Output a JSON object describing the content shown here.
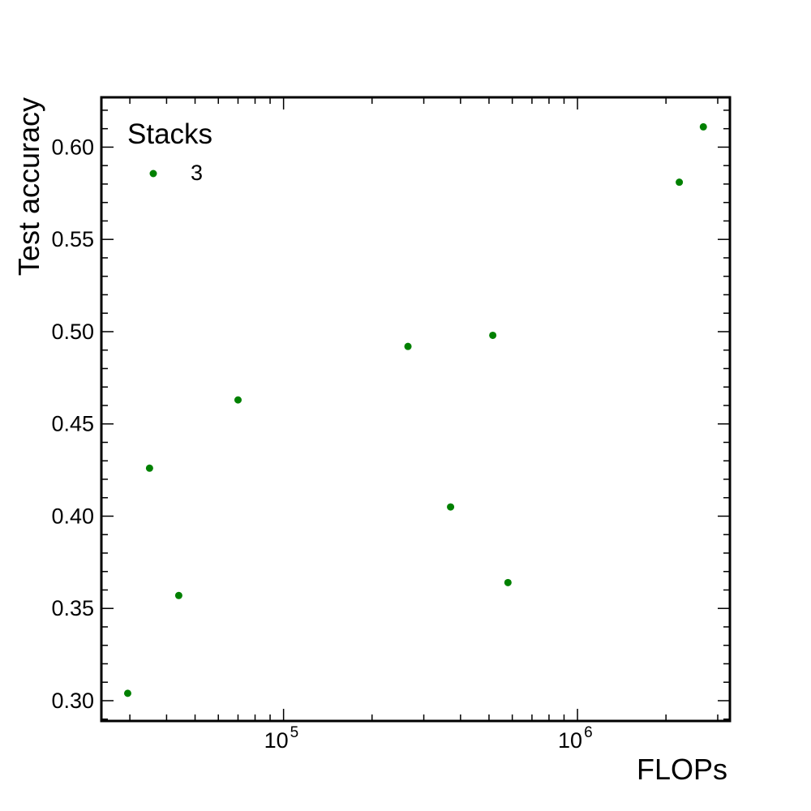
{
  "chart_data": {
    "type": "scatter",
    "xlabel": "FLOPs",
    "ylabel": "Test accuracy",
    "xscale": "log",
    "xlim": [
      24000,
      3300000
    ],
    "ylim": [
      0.289,
      0.627
    ],
    "x_ticks": [
      {
        "value": 100000,
        "base": "10",
        "exp": "5"
      },
      {
        "value": 1000000,
        "base": "10",
        "exp": "6"
      }
    ],
    "y_ticks": [
      0.3,
      0.35,
      0.4,
      0.45,
      0.5,
      0.55,
      0.6
    ],
    "y_tick_labels": [
      "0.30",
      "0.35",
      "0.40",
      "0.45",
      "0.50",
      "0.55",
      "0.60"
    ],
    "grid": false,
    "legend": {
      "title": "Stacks",
      "placement": "top-left",
      "entries": [
        "3"
      ]
    },
    "series": [
      {
        "name": "3",
        "color": "#008000",
        "points": [
          {
            "x": 29500,
            "y": 0.304
          },
          {
            "x": 35000,
            "y": 0.426
          },
          {
            "x": 44000,
            "y": 0.357
          },
          {
            "x": 70000,
            "y": 0.463
          },
          {
            "x": 265000,
            "y": 0.492
          },
          {
            "x": 370000,
            "y": 0.405
          },
          {
            "x": 515000,
            "y": 0.498
          },
          {
            "x": 580000,
            "y": 0.364
          },
          {
            "x": 2220000,
            "y": 0.581
          },
          {
            "x": 2680000,
            "y": 0.611
          }
        ]
      }
    ]
  }
}
